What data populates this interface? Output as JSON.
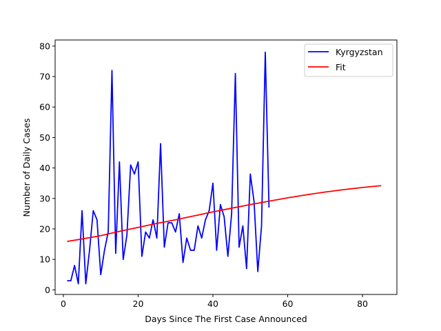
{
  "chart_data": {
    "type": "line",
    "xlabel": "Days Since The First Case Announced",
    "ylabel": "Number of Daily Cases",
    "xlim": [
      -2.2,
      89.2
    ],
    "ylim": [
      -1.5,
      82
    ],
    "xticks": [
      0,
      20,
      40,
      60,
      80
    ],
    "yticks": [
      0,
      10,
      20,
      30,
      40,
      50,
      60,
      70,
      80
    ],
    "grid": false,
    "legend_position": "top-right",
    "series": [
      {
        "name": "Kyrgyzstan",
        "color": "#0000ff",
        "x": [
          1,
          2,
          3,
          4,
          5,
          6,
          7,
          8,
          9,
          10,
          11,
          12,
          13,
          14,
          15,
          16,
          17,
          18,
          19,
          20,
          21,
          22,
          23,
          24,
          25,
          26,
          27,
          28,
          29,
          30,
          31,
          32,
          33,
          34,
          35,
          36,
          37,
          38,
          39,
          40,
          41,
          42,
          43,
          44,
          45,
          46,
          47,
          48,
          49,
          50,
          51,
          52,
          53,
          54,
          55
        ],
        "y": [
          3,
          3,
          8,
          2,
          26,
          2,
          13,
          26,
          23,
          5,
          13,
          19,
          72,
          12,
          42,
          10,
          18,
          41,
          38,
          42,
          11,
          19,
          17,
          23,
          17,
          48,
          14,
          22,
          22,
          19,
          25,
          9,
          17,
          13,
          13,
          21,
          17,
          23,
          26,
          35,
          13,
          28,
          24,
          11,
          25,
          71,
          14,
          21,
          7,
          38,
          29,
          6,
          21,
          78,
          27
        ]
      },
      {
        "name": "Fit",
        "color": "#ff0000",
        "x": [
          1,
          5,
          10,
          15,
          20,
          25,
          30,
          35,
          40,
          45,
          50,
          55,
          60,
          65,
          70,
          75,
          80,
          85
        ],
        "y": [
          15.9,
          16.7,
          17.8,
          19.2,
          20.5,
          21.8,
          23.0,
          24.3,
          25.6,
          26.8,
          28.0,
          29.1,
          30.2,
          31.2,
          32.1,
          32.9,
          33.6,
          34.2
        ]
      }
    ]
  }
}
